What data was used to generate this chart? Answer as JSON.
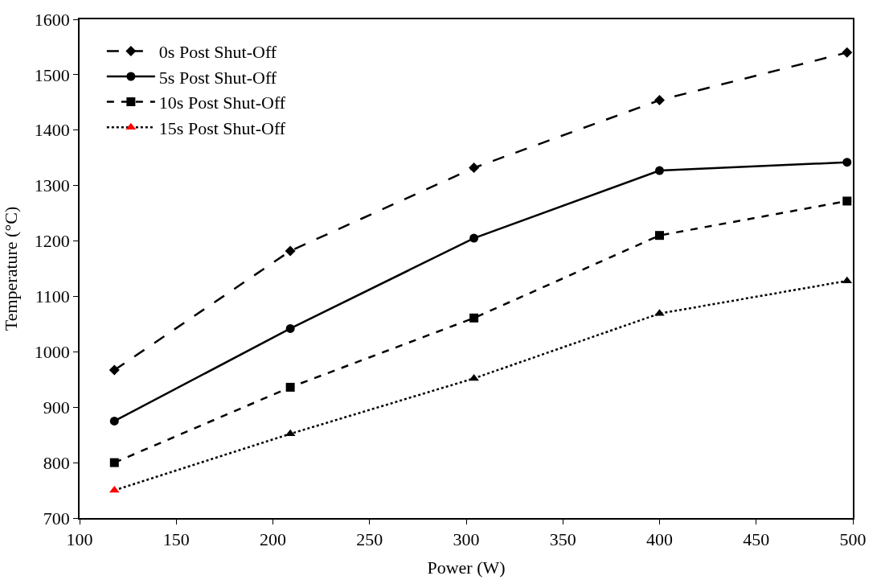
{
  "chart_data": {
    "type": "line",
    "xlabel": "Power (W)",
    "ylabel": "Temperature (°C)",
    "x": [
      118,
      209,
      304,
      400,
      497
    ],
    "xlim": [
      100,
      500
    ],
    "xticks": [
      100,
      150,
      200,
      250,
      300,
      350,
      400,
      450,
      500
    ],
    "ylim": [
      700,
      1600
    ],
    "yticks": [
      700,
      800,
      900,
      1000,
      1100,
      1200,
      1300,
      1400,
      1500,
      1600
    ],
    "legend": "top left",
    "series": [
      {
        "name": "0s Post Shut-Off",
        "color": "#000000",
        "marker": "diamond",
        "line_style": "longdash",
        "values": [
          967,
          1182,
          1332,
          1454,
          1540
        ]
      },
      {
        "name": "5s Post Shut-Off",
        "color": "#000000",
        "marker": "circle",
        "line_style": "solid",
        "values": [
          875,
          1042,
          1205,
          1327,
          1342
        ]
      },
      {
        "name": "10s Post Shut-Off",
        "color": "#000000",
        "marker": "square",
        "line_style": "dashed",
        "values": [
          800,
          936,
          1061,
          1210,
          1272
        ]
      },
      {
        "name": "15s Post Shut-Off",
        "color": "#000000",
        "colors": [
          "#ff0000",
          "#000000",
          "#000000",
          "#000000",
          "#000000"
        ],
        "marker": "triangle",
        "line_style": "dotted",
        "values": [
          750,
          852,
          952,
          1069,
          1128
        ]
      }
    ]
  }
}
